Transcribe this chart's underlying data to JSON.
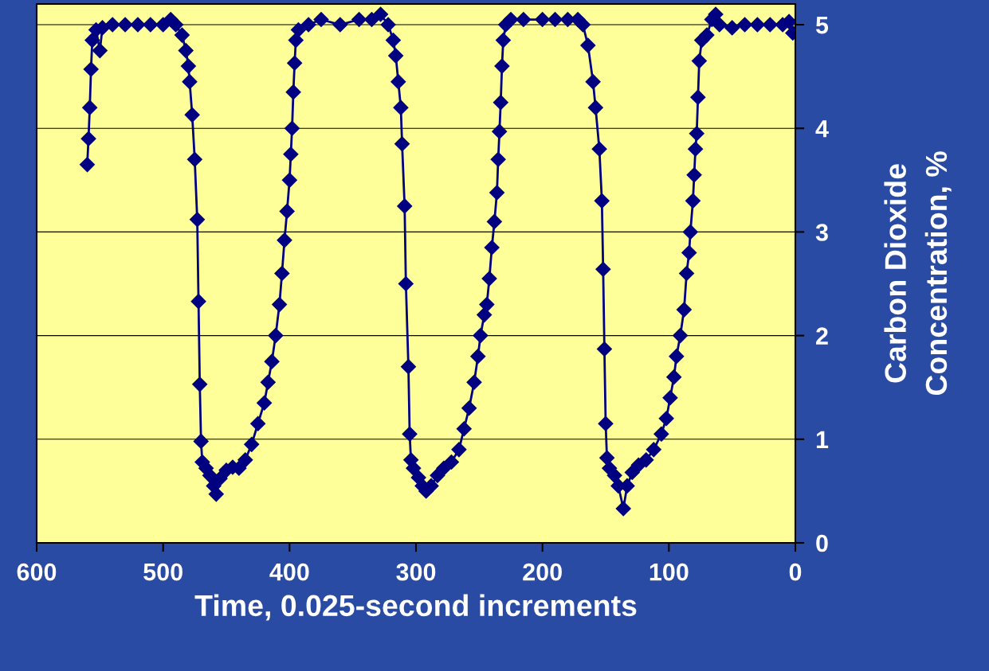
{
  "chart_data": {
    "type": "line",
    "xlabel": "Time, 0.025-second increments",
    "ylabel": "Carbon Dioxide\nConcentration, %",
    "x": [
      560,
      559,
      558,
      557,
      556,
      553,
      550,
      548,
      540,
      530,
      520,
      510,
      500,
      494,
      490,
      485,
      482,
      480,
      479,
      477,
      475,
      473,
      472,
      471,
      470,
      469,
      466,
      463,
      460,
      458,
      455,
      450,
      445,
      440,
      435,
      430,
      425,
      420,
      417,
      414,
      411,
      408,
      406,
      404,
      402,
      400,
      399,
      398,
      397,
      396,
      395,
      393,
      385,
      375,
      360,
      345,
      335,
      328,
      322,
      318,
      316,
      314,
      312,
      311,
      309,
      308,
      306,
      305,
      304,
      302,
      298,
      295,
      292,
      288,
      283,
      278,
      272,
      266,
      262,
      258,
      254,
      251,
      249,
      246,
      244,
      242,
      240,
      238,
      236,
      235,
      234,
      233,
      232,
      231,
      229,
      225,
      215,
      200,
      190,
      180,
      172,
      168,
      164,
      160,
      158,
      155,
      153,
      152,
      151,
      150,
      149,
      147,
      143,
      140,
      136,
      133,
      129,
      124,
      118,
      112,
      106,
      102,
      99,
      96,
      94,
      91,
      88,
      86,
      84,
      83,
      81,
      80,
      79,
      78,
      77,
      76,
      74,
      70,
      66,
      63,
      60,
      50,
      40,
      30,
      20,
      10,
      5,
      2
    ],
    "series": [
      {
        "color": "#000080",
        "values": [
          3.65,
          3.9,
          4.2,
          4.57,
          4.85,
          4.95,
          4.75,
          4.97,
          5.0,
          5.0,
          5.0,
          5.0,
          5.0,
          5.05,
          5.0,
          4.9,
          4.75,
          4.6,
          4.45,
          4.13,
          3.7,
          3.12,
          2.33,
          1.53,
          0.98,
          0.78,
          0.72,
          0.65,
          0.55,
          0.47,
          0.62,
          0.7,
          0.73,
          0.72,
          0.8,
          0.95,
          1.15,
          1.35,
          1.55,
          1.75,
          2.0,
          2.3,
          2.6,
          2.92,
          3.2,
          3.5,
          3.75,
          4.0,
          4.35,
          4.63,
          4.85,
          4.95,
          5.0,
          5.05,
          5.0,
          5.05,
          5.05,
          5.1,
          5.0,
          4.85,
          4.7,
          4.45,
          4.2,
          3.85,
          3.25,
          2.5,
          1.7,
          1.05,
          0.8,
          0.72,
          0.63,
          0.55,
          0.5,
          0.55,
          0.65,
          0.72,
          0.78,
          0.9,
          1.1,
          1.3,
          1.55,
          1.8,
          2.0,
          2.2,
          2.3,
          2.55,
          2.85,
          3.1,
          3.38,
          3.7,
          3.97,
          4.25,
          4.6,
          4.85,
          5.0,
          5.05,
          5.05,
          5.05,
          5.05,
          5.05,
          5.05,
          5.0,
          4.8,
          4.45,
          4.2,
          3.8,
          3.3,
          2.64,
          1.87,
          1.15,
          0.82,
          0.72,
          0.65,
          0.55,
          0.33,
          0.55,
          0.68,
          0.75,
          0.8,
          0.9,
          1.05,
          1.2,
          1.4,
          1.6,
          1.8,
          2.0,
          2.25,
          2.6,
          2.8,
          3.0,
          3.3,
          3.55,
          3.8,
          3.95,
          4.3,
          4.65,
          4.85,
          4.9,
          5.05,
          5.1,
          5.0,
          4.97,
          5.0,
          5.0,
          5.0,
          5.0,
          5.03,
          4.92
        ]
      }
    ],
    "xlim": [
      600,
      0
    ],
    "ylim": [
      0,
      5.2
    ],
    "xticks": [
      600,
      500,
      400,
      300,
      200,
      100,
      0
    ],
    "yticks": [
      0,
      1,
      2,
      3,
      4,
      5
    ],
    "grid": "y",
    "marker": "diamond",
    "line_style": "solid"
  }
}
